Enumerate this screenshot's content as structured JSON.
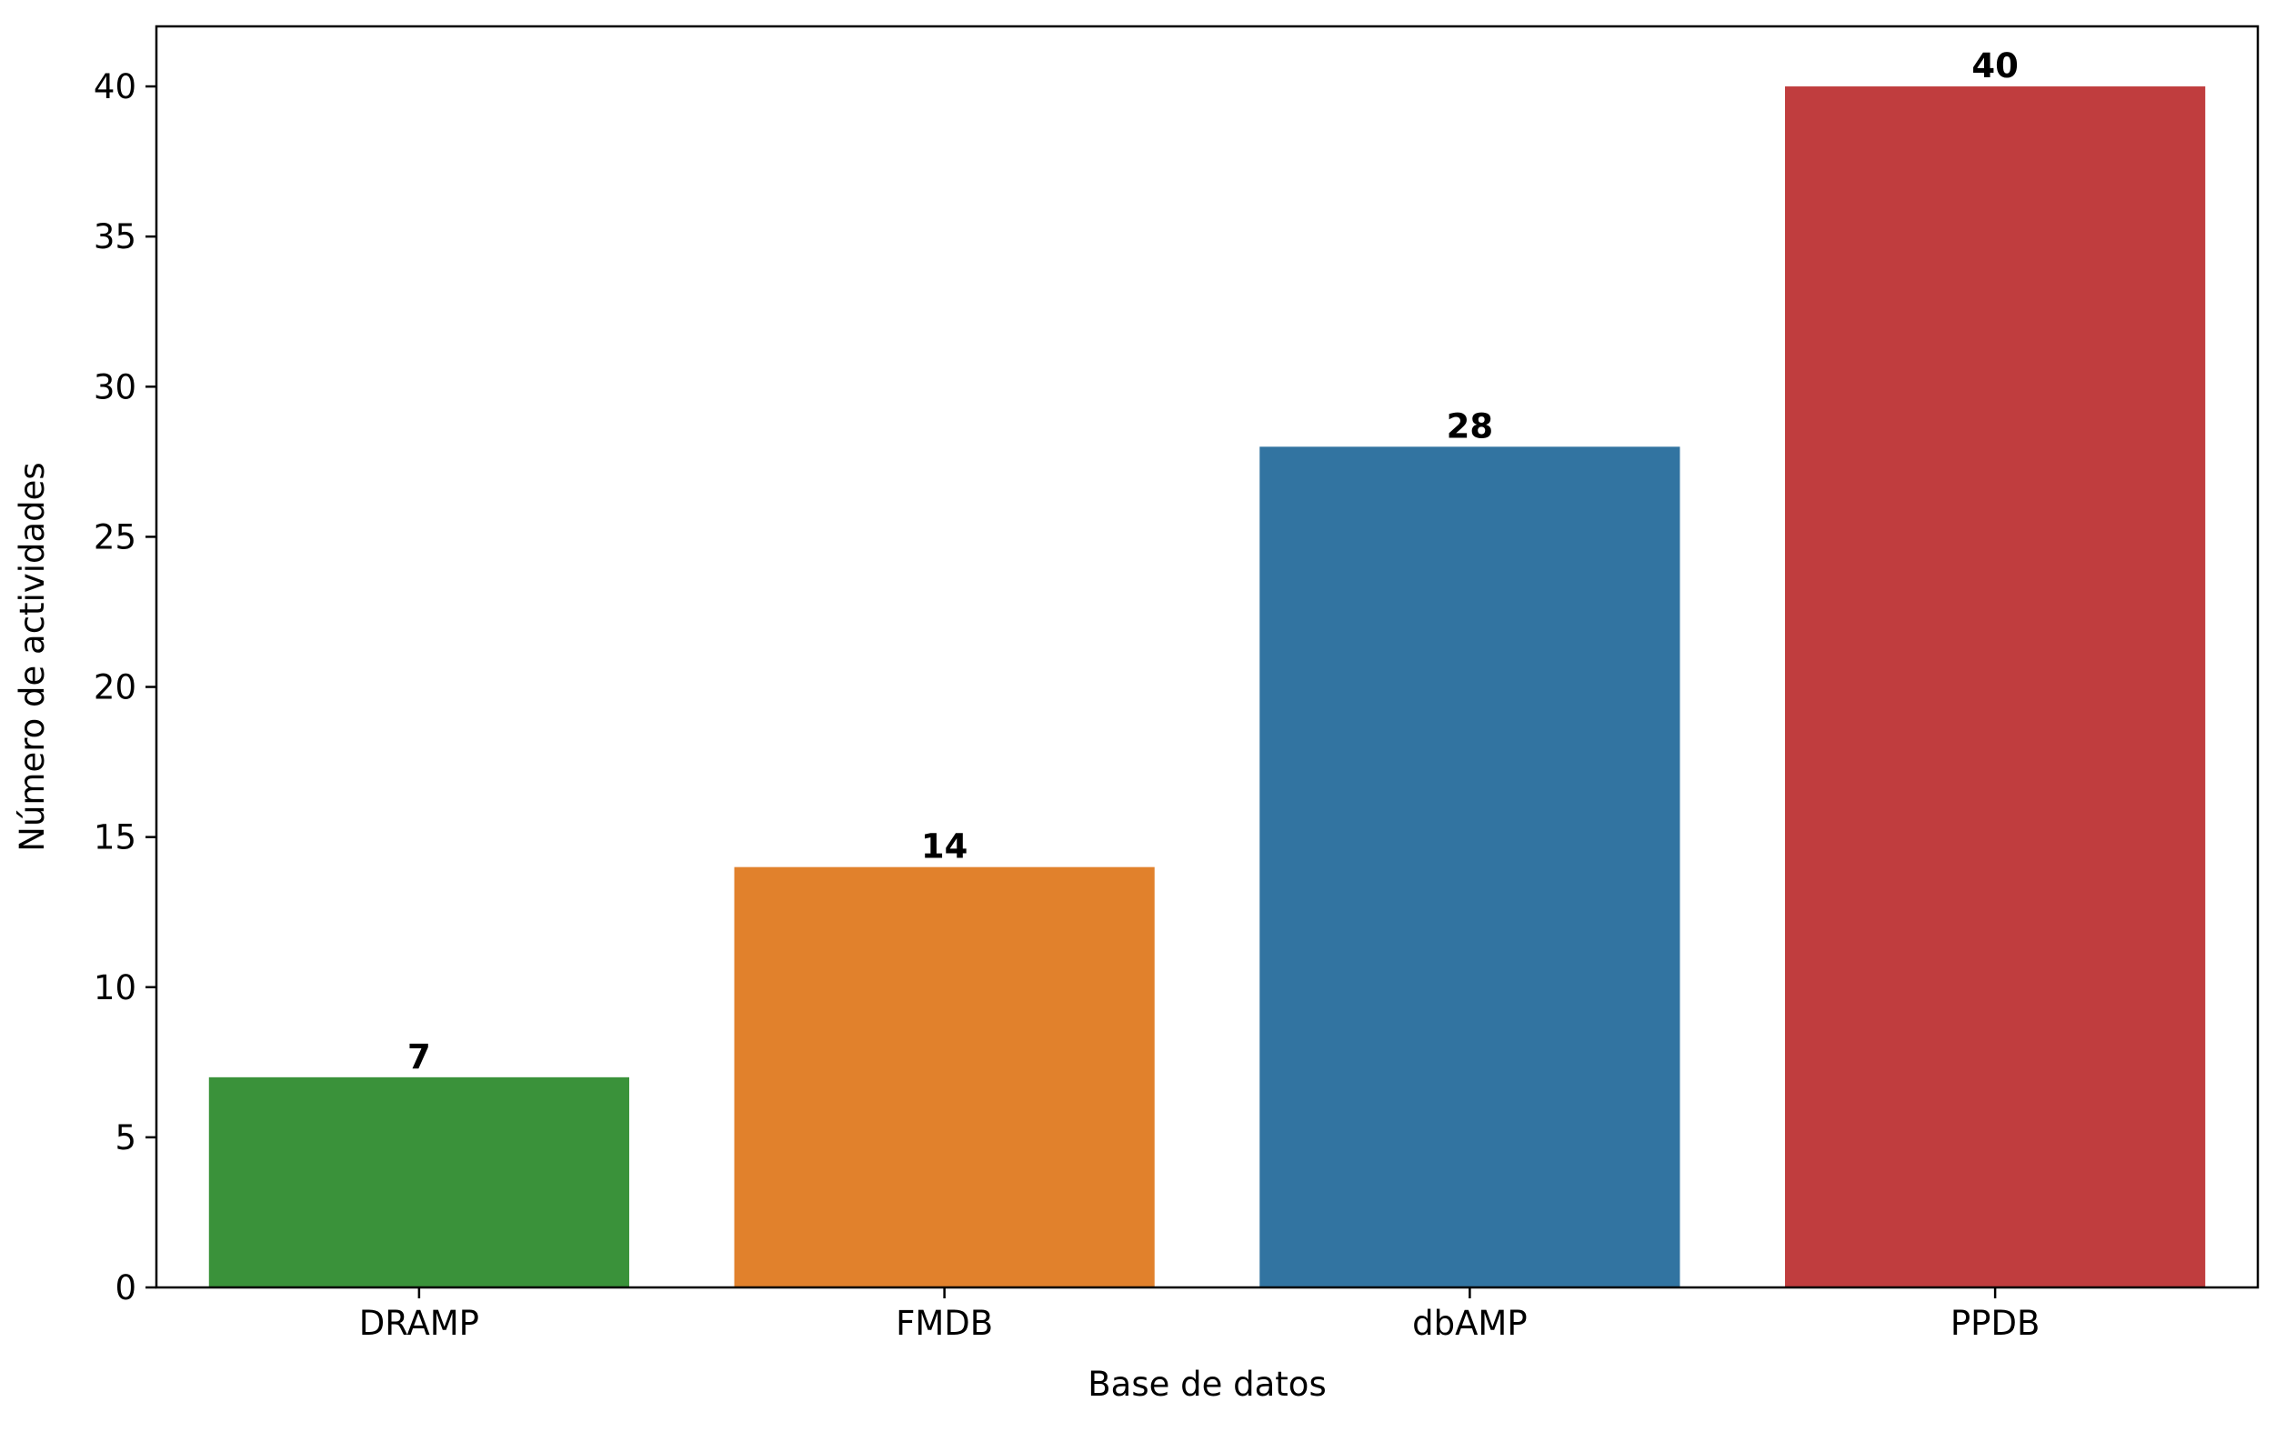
{
  "chart_data": {
    "type": "bar",
    "title": "",
    "xlabel": "Base de datos",
    "ylabel": "Número de actividades",
    "categories": [
      "DRAMP",
      "FMDB",
      "dbAMP",
      "PPDB"
    ],
    "values": [
      7,
      14,
      28,
      40
    ],
    "data_labels": [
      "7",
      "14",
      "28",
      "40"
    ],
    "colors": [
      "#3a923a",
      "#e1812c",
      "#3274a1",
      "#c03d3e"
    ],
    "ylim": [
      0,
      42
    ],
    "yticks": [
      0,
      5,
      10,
      15,
      20,
      25,
      30,
      35,
      40
    ],
    "grid": false,
    "legend": "none"
  }
}
